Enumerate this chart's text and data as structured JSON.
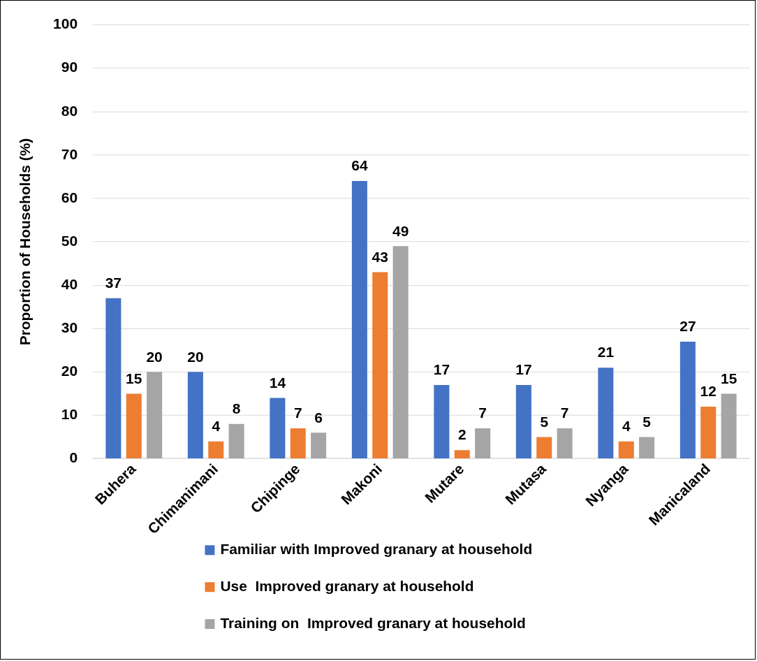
{
  "chart_data": {
    "type": "bar",
    "ylabel": "Proportion of Households (%)",
    "categories": [
      "Buhera",
      "Chimanimani",
      "Chipinge",
      "Makoni",
      "Mutare",
      "Mutasa",
      "Nyanga",
      "Manicaland"
    ],
    "series": [
      {
        "name": "Familiar with Improved granary at household",
        "color": "#4472c4",
        "values": [
          37,
          20,
          14,
          64,
          17,
          17,
          21,
          27
        ]
      },
      {
        "name": "Use  Improved granary at household",
        "color": "#ed7d31",
        "values": [
          15,
          4,
          7,
          43,
          2,
          5,
          4,
          12
        ]
      },
      {
        "name": "Training on  Improved granary at household",
        "color": "#a5a5a5",
        "values": [
          20,
          8,
          6,
          49,
          7,
          7,
          5,
          15
        ]
      }
    ],
    "ylim": [
      0,
      100
    ],
    "yticks": [
      0,
      10,
      20,
      30,
      40,
      50,
      60,
      70,
      80,
      90,
      100
    ],
    "grid": "y",
    "legend": "bottom",
    "data_labels": true
  }
}
